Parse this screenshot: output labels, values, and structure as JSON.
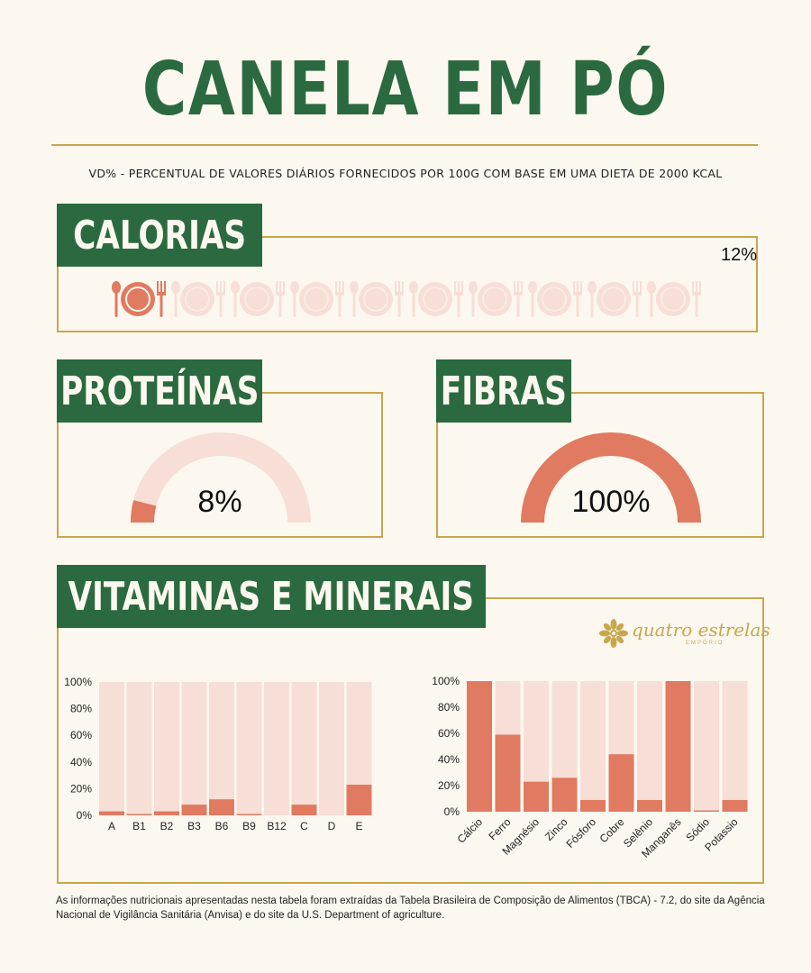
{
  "title": "CANELA EM PÓ",
  "subtitle": "VD% - PERCENTUAL DE VALORES DIÁRIOS FORNECIDOS POR 100G COM BASE EM UMA DIETA DE 2000 KCAL",
  "calorias": {
    "label": "CALORIAS",
    "value_text": "12%",
    "value": 12,
    "icon_count": 10,
    "icons_filled": 1
  },
  "proteinas": {
    "label": "PROTEÍNAS",
    "value_text": "8%",
    "value": 8
  },
  "fibras": {
    "label": "FIBRAS",
    "value_text": "100%",
    "value": 100
  },
  "vitaminas": {
    "label": "VITAMINAS E MINERAIS"
  },
  "logo": {
    "text": "quatro estrelas",
    "subtext": "EMPÓRIO"
  },
  "colors": {
    "green": "#2b6a40",
    "gold": "#c9a64d",
    "coral": "#e07a60",
    "pale": "#f7ded6",
    "background": "#fdf8ef"
  },
  "chart_data": [
    {
      "type": "bar",
      "stacked_to_full": true,
      "categories": [
        "A",
        "B1",
        "B2",
        "B3",
        "B6",
        "B9",
        "B12",
        "C",
        "D",
        "E"
      ],
      "values": [
        3,
        1,
        3,
        8,
        12,
        1,
        0,
        8,
        0,
        23
      ],
      "yticks": [
        "0%",
        "20%",
        "40%",
        "60%",
        "80%",
        "100%"
      ],
      "ylim": [
        0,
        100
      ]
    },
    {
      "type": "bar",
      "stacked_to_full": true,
      "categories": [
        "Cálcio",
        "Ferro",
        "Magnésio",
        "Zinco",
        "Fósforo",
        "Cobre",
        "Selênio",
        "Manganês",
        "Sódio",
        "Potassio"
      ],
      "values": [
        100,
        59,
        23,
        26,
        9,
        44,
        9,
        100,
        1,
        9
      ],
      "yticks": [
        "0%",
        "20%",
        "40%",
        "60%",
        "80%",
        "100%"
      ],
      "ylim": [
        0,
        100
      ]
    }
  ],
  "footer": "As informações nutricionais apresentadas nesta tabela foram extraídas da Tabela Brasileira de Composição de Alimentos (TBCA) - 7.2, do site da Agência Nacional de Vigilância Sanitária (Anvisa) e do site da U.S. Department of agriculture."
}
